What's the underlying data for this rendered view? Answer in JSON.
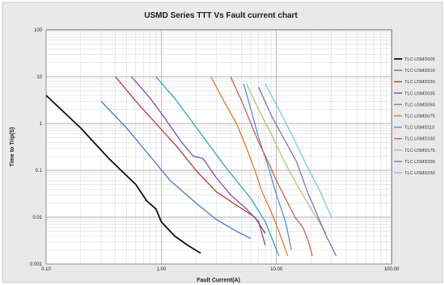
{
  "chart_data": {
    "type": "line",
    "title": "USMD Series TTT Vs Fault current chart",
    "xlabel": "Fault Current(A)",
    "ylabel": "Time to Trip(S)",
    "xscale": "log",
    "yscale": "log",
    "xlim": [
      0.1,
      100
    ],
    "ylim": [
      0.001,
      100
    ],
    "xticks": [
      "0.10",
      "1.00",
      "10.00",
      "100.00"
    ],
    "yticks": [
      "100",
      "10",
      "1",
      "0.1",
      "0.01",
      "0.001"
    ],
    "grid": true,
    "legend_position": "right",
    "series": [
      {
        "name": "TLC-USMD005",
        "color": "#111111",
        "x": [
          0.1,
          0.2,
          0.35,
          0.6,
          0.75,
          0.9,
          1.0,
          1.3,
          1.7,
          2.2
        ],
        "y": [
          4.0,
          0.8,
          0.18,
          0.05,
          0.022,
          0.015,
          0.008,
          0.004,
          0.0025,
          0.0017
        ]
      },
      {
        "name": "TLC-USMD010",
        "color": "#4a78c2",
        "x": [
          0.3,
          0.5,
          0.8,
          1.2,
          2.0,
          3.0,
          4.5,
          6.0
        ],
        "y": [
          3.0,
          0.8,
          0.2,
          0.06,
          0.02,
          0.009,
          0.005,
          0.0035
        ]
      },
      {
        "name": "TLC-USMD020",
        "color": "#b23a3a",
        "x": [
          0.4,
          0.6,
          0.9,
          1.4,
          2.0,
          3.0,
          4.5,
          6.5,
          8.0
        ],
        "y": [
          10,
          3.0,
          1.0,
          0.3,
          0.1,
          0.035,
          0.018,
          0.01,
          0.0045
        ]
      },
      {
        "name": "TLC-USMD035",
        "color": "#7b4ea8",
        "x": [
          0.55,
          0.8,
          1.1,
          1.5,
          1.9,
          2.3,
          3.0,
          4.0,
          5.5,
          7.0,
          8.0
        ],
        "y": [
          10,
          3.5,
          1.2,
          0.4,
          0.2,
          0.18,
          0.07,
          0.03,
          0.015,
          0.008,
          0.0025
        ]
      },
      {
        "name": "TLC-USMD050",
        "color": "#3aa0b8",
        "x": [
          0.9,
          1.3,
          1.8,
          2.5,
          3.5,
          4.5,
          6.0,
          8.0,
          10.5
        ],
        "y": [
          10,
          3.5,
          1.2,
          0.4,
          0.13,
          0.06,
          0.025,
          0.008,
          0.0015
        ]
      },
      {
        "name": "TLC-USMD075",
        "color": "#e07a28",
        "x": [
          2.7,
          3.5,
          4.5,
          5.5,
          6.5,
          7.5,
          9.0,
          10.5,
          12.5
        ],
        "y": [
          10,
          3.0,
          1.0,
          0.3,
          0.1,
          0.035,
          0.013,
          0.005,
          0.0015
        ]
      },
      {
        "name": "TLC-USMD110",
        "color": "#5b8fd6",
        "x": [
          5.2,
          6.0,
          7.0,
          8.5,
          10.0,
          12.0,
          13.5
        ],
        "y": [
          7.0,
          2.0,
          0.5,
          0.12,
          0.03,
          0.008,
          0.002
        ]
      },
      {
        "name": "TLC-USMD150",
        "color": "#c96060",
        "x": [
          4.0,
          5.0,
          6.0,
          7.0,
          8.5,
          10.0,
          12.0,
          14.5,
          17.0,
          19.0,
          20.5
        ],
        "y": [
          10,
          3.0,
          1.0,
          0.4,
          0.15,
          0.06,
          0.025,
          0.01,
          0.006,
          0.003,
          0.0015
        ]
      },
      {
        "name": "TLC-USMD175",
        "color": "#a6c979",
        "x": [
          5.5,
          7.0,
          9.0,
          11.5,
          15.0,
          20.0,
          27.0
        ],
        "y": [
          7.0,
          2.0,
          0.6,
          0.17,
          0.05,
          0.015,
          0.0045
        ]
      },
      {
        "name": "TLC-USMD200",
        "color": "#8d6bb8",
        "x": [
          7.0,
          9.0,
          11.5,
          15.0,
          19.0,
          20.5,
          23.0,
          27.0,
          33.0
        ],
        "y": [
          6.0,
          1.5,
          0.5,
          0.15,
          0.03,
          0.02,
          0.01,
          0.004,
          0.0015
        ]
      },
      {
        "name": "TLC-USMD250",
        "color": "#7fc6e0",
        "x": [
          8.0,
          10.5,
          14.0,
          18.5,
          24.0,
          30.0
        ],
        "y": [
          7.0,
          2.0,
          0.5,
          0.12,
          0.035,
          0.01
        ]
      }
    ]
  }
}
